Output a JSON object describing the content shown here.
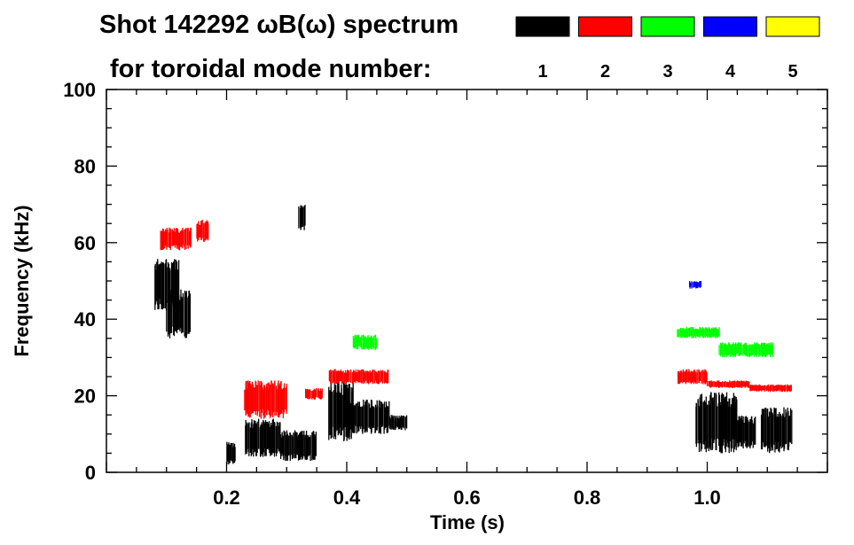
{
  "chart_data": {
    "type": "heatmap",
    "title_line1": "Shot 142292 ωB(ω) spectrum",
    "title_line2": "for toroidal mode number:",
    "xlabel": "Time (s)",
    "ylabel": "Frequency (kHz)",
    "xlim": [
      0.0,
      1.2
    ],
    "ylim": [
      0,
      100
    ],
    "x_ticks": [
      {
        "value": 0.2,
        "label": "0.2"
      },
      {
        "value": 0.4,
        "label": "0.4"
      },
      {
        "value": 0.6,
        "label": "0.6"
      },
      {
        "value": 0.8,
        "label": "0.8"
      },
      {
        "value": 1.0,
        "label": "1.0"
      }
    ],
    "y_ticks": [
      {
        "value": 0,
        "label": "0"
      },
      {
        "value": 20,
        "label": "20"
      },
      {
        "value": 40,
        "label": "40"
      },
      {
        "value": 60,
        "label": "60"
      },
      {
        "value": 80,
        "label": "80"
      },
      {
        "value": 100,
        "label": "100"
      }
    ],
    "legend": [
      {
        "mode": "1",
        "color": "#000000"
      },
      {
        "mode": "2",
        "color": "#ff0000"
      },
      {
        "mode": "3",
        "color": "#00ff00"
      },
      {
        "mode": "4",
        "color": "#0000ff"
      },
      {
        "mode": "5",
        "color": "#ffff00"
      }
    ],
    "legend_placement": "top",
    "grid": false,
    "series": [
      {
        "mode": "1",
        "color": "#000000",
        "regions": [
          {
            "t0": 0.08,
            "t1": 0.12,
            "f0": 42,
            "f1": 56
          },
          {
            "t0": 0.1,
            "t1": 0.14,
            "f0": 35,
            "f1": 48
          },
          {
            "t0": 0.2,
            "t1": 0.215,
            "f0": 2,
            "f1": 8
          },
          {
            "t0": 0.23,
            "t1": 0.29,
            "f0": 4,
            "f1": 14
          },
          {
            "t0": 0.29,
            "t1": 0.35,
            "f0": 3,
            "f1": 11
          },
          {
            "t0": 0.32,
            "t1": 0.33,
            "f0": 63,
            "f1": 70
          },
          {
            "t0": 0.37,
            "t1": 0.41,
            "f0": 8,
            "f1": 24
          },
          {
            "t0": 0.4,
            "t1": 0.47,
            "f0": 10,
            "f1": 19
          },
          {
            "t0": 0.47,
            "t1": 0.5,
            "f0": 11,
            "f1": 15
          },
          {
            "t0": 0.98,
            "t1": 1.05,
            "f0": 5,
            "f1": 21
          },
          {
            "t0": 1.05,
            "t1": 1.08,
            "f0": 6,
            "f1": 15
          },
          {
            "t0": 1.09,
            "t1": 1.14,
            "f0": 5,
            "f1": 17
          }
        ]
      },
      {
        "mode": "2",
        "color": "#ff0000",
        "regions": [
          {
            "t0": 0.09,
            "t1": 0.14,
            "f0": 58,
            "f1": 64
          },
          {
            "t0": 0.15,
            "t1": 0.17,
            "f0": 60,
            "f1": 66
          },
          {
            "t0": 0.23,
            "t1": 0.3,
            "f0": 14,
            "f1": 24
          },
          {
            "t0": 0.33,
            "t1": 0.36,
            "f0": 19,
            "f1": 22
          },
          {
            "t0": 0.37,
            "t1": 0.47,
            "f0": 23,
            "f1": 27
          },
          {
            "t0": 0.95,
            "t1": 1.0,
            "f0": 23,
            "f1": 27
          },
          {
            "t0": 1.0,
            "t1": 1.07,
            "f0": 22,
            "f1": 24
          },
          {
            "t0": 1.07,
            "t1": 1.14,
            "f0": 21,
            "f1": 23
          }
        ]
      },
      {
        "mode": "3",
        "color": "#00ff00",
        "regions": [
          {
            "t0": 0.41,
            "t1": 0.45,
            "f0": 32,
            "f1": 36
          },
          {
            "t0": 0.95,
            "t1": 1.02,
            "f0": 35,
            "f1": 38
          },
          {
            "t0": 1.02,
            "t1": 1.11,
            "f0": 30,
            "f1": 34
          }
        ]
      },
      {
        "mode": "4",
        "color": "#0000ff",
        "regions": [
          {
            "t0": 0.97,
            "t1": 0.99,
            "f0": 48,
            "f1": 50
          }
        ]
      },
      {
        "mode": "5",
        "color": "#ffff00",
        "regions": []
      }
    ]
  }
}
